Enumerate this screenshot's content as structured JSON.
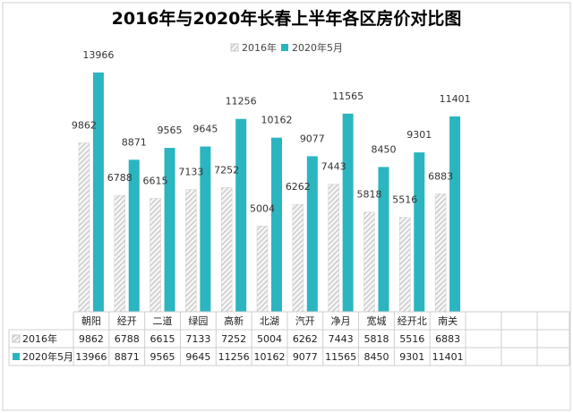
{
  "chart_data": {
    "type": "bar",
    "title": "2016年与2020年长春上半年各区房价对比图",
    "categories": [
      "朝阳",
      "经开",
      "二道",
      "绿园",
      "高新",
      "北湖",
      "汽开",
      "净月",
      "宽城",
      "经开北",
      "南关"
    ],
    "series": [
      {
        "name": "2016年",
        "values": [
          9862,
          6788,
          6615,
          7133,
          7252,
          5004,
          6262,
          7443,
          5818,
          5516,
          6883
        ],
        "color": "#d9d9d9",
        "pattern": "diagonal-hatch"
      },
      {
        "name": "2020年5月",
        "values": [
          13966,
          8871,
          9565,
          9645,
          11256,
          10162,
          9077,
          11565,
          8450,
          9301,
          11401
        ],
        "color": "#2bb5c0"
      }
    ],
    "ylim": [
      0,
      16000
    ],
    "xlabel": "",
    "ylabel": "",
    "grid": false,
    "legend": "top-center",
    "data_table": true
  }
}
